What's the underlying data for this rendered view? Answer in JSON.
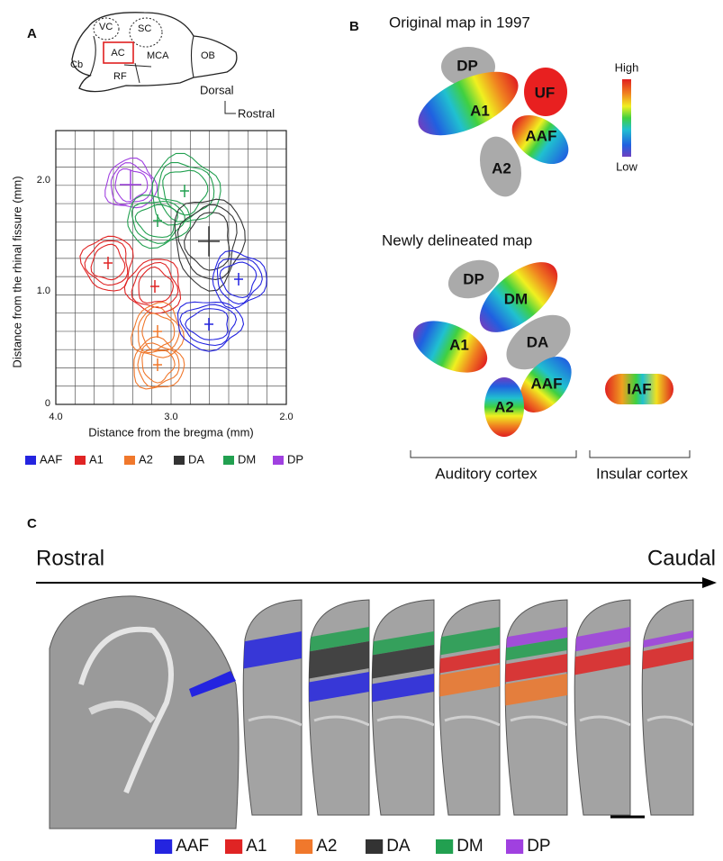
{
  "panel_a": {
    "label": "A",
    "schematic": {
      "vc": "VC",
      "sc": "SC",
      "ac": "AC",
      "mca": "MCA",
      "ob": "OB",
      "cb": "Cb",
      "rf": "RF",
      "dorsal": "Dorsal",
      "rostral": "Rostral"
    },
    "plot": {
      "y_label": "Distance from the rhinal fissure (mm)",
      "x_label": "Distance from the bregma (mm)",
      "xticks": [
        "4.0",
        "3.0",
        "2.0"
      ],
      "yticks": [
        "0",
        "1.0",
        "2.0"
      ]
    },
    "legend": [
      {
        "label": "AAF",
        "color": "#2424e0"
      },
      {
        "label": "A1",
        "color": "#e02424"
      },
      {
        "label": "A2",
        "color": "#f0782c"
      },
      {
        "label": "DA",
        "color": "#333333"
      },
      {
        "label": "DM",
        "color": "#22a050"
      },
      {
        "label": "DP",
        "color": "#a040e0"
      }
    ]
  },
  "panel_b": {
    "label": "B",
    "original": {
      "title": "Original map in 1997",
      "areas": [
        "DP",
        "A1",
        "UF",
        "AAF",
        "A2"
      ]
    },
    "colorbar": {
      "high": "High",
      "low": "Low"
    },
    "new": {
      "title": "Newly delineated map",
      "areas": [
        "DP",
        "DM",
        "A1",
        "DA",
        "AAF",
        "A2",
        "IAF"
      ]
    },
    "brackets": [
      "Auditory cortex",
      "Insular cortex"
    ]
  },
  "panel_c": {
    "label": "C",
    "rostral": "Rostral",
    "caudal": "Caudal",
    "legend": [
      {
        "label": "AAF",
        "color": "#2424e0"
      },
      {
        "label": "A1",
        "color": "#e02424"
      },
      {
        "label": "A2",
        "color": "#f0782c"
      },
      {
        "label": "DA",
        "color": "#333333"
      },
      {
        "label": "DM",
        "color": "#22a050"
      },
      {
        "label": "DP",
        "color": "#a040e0"
      }
    ]
  }
}
